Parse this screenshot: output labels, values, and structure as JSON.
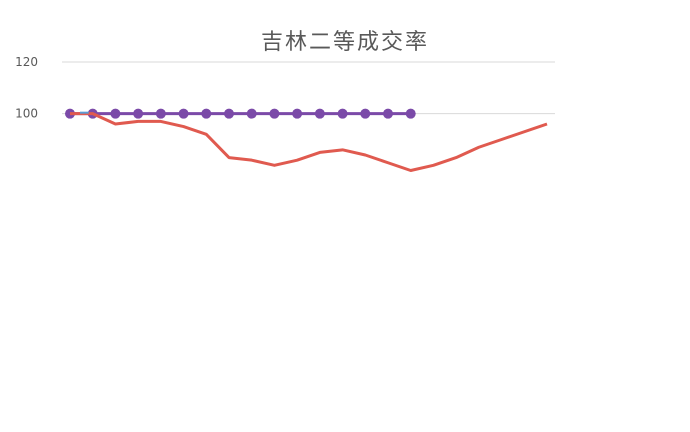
{
  "chart_data": {
    "type": "line",
    "title": "吉林二等成交率",
    "yticks": [
      "120",
      "100"
    ],
    "ylim": [
      0,
      120
    ],
    "grid": true,
    "x_count": 22,
    "series": [
      {
        "color": "#7b4aa8",
        "values": [
          100,
          100,
          100,
          100,
          100,
          100,
          100,
          100,
          100,
          100,
          100,
          100,
          100,
          100,
          100,
          100
        ]
      },
      {
        "color": "#e05a4f",
        "values": [
          100,
          100,
          96,
          97,
          97,
          95,
          92,
          83,
          82,
          80,
          82,
          85,
          86,
          84,
          81,
          78,
          80,
          83,
          87,
          90,
          93,
          96
        ]
      }
    ],
    "series_style_outlier": "#5b9bd5"
  }
}
